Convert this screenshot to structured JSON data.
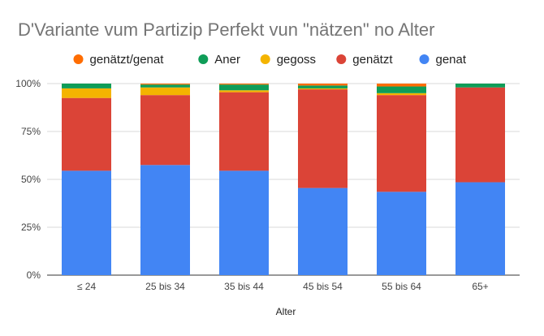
{
  "chart_data": {
    "type": "bar",
    "stacked": true,
    "normalized": true,
    "title": "D'Variante vum Partizip Perfekt vun \"nätzen\" no Alter",
    "xlabel": "Alter",
    "ylabel": "",
    "categories": [
      "≤ 24",
      "25 bis 34",
      "35 bis 44",
      "45 bis 54",
      "55 bis 64",
      "65+"
    ],
    "y_ticks": [
      "0%",
      "25%",
      "50%",
      "75%",
      "100%"
    ],
    "ylim": [
      0,
      100
    ],
    "grid": true,
    "legend_position": "top",
    "legend_order": [
      "genätzt/genat",
      "Aner",
      "gegoss",
      "genätzt",
      "genat"
    ],
    "series": [
      {
        "name": "genat",
        "color": "#4285f4",
        "values": [
          54.5,
          57.5,
          54.5,
          45.5,
          43.5,
          48.5
        ]
      },
      {
        "name": "genätzt",
        "color": "#db4437",
        "values": [
          38,
          36.5,
          41,
          51.5,
          50.5,
          49.5
        ]
      },
      {
        "name": "gegoss",
        "color": "#f4b400",
        "values": [
          5,
          4,
          1,
          0.5,
          1,
          0
        ]
      },
      {
        "name": "Aner",
        "color": "#0f9d58",
        "values": [
          2.5,
          1.5,
          3,
          1.5,
          3.5,
          2
        ]
      },
      {
        "name": "genätzt/genat",
        "color": "#ff6d01",
        "values": [
          0,
          0.5,
          0.5,
          1,
          1.5,
          0
        ]
      }
    ]
  }
}
